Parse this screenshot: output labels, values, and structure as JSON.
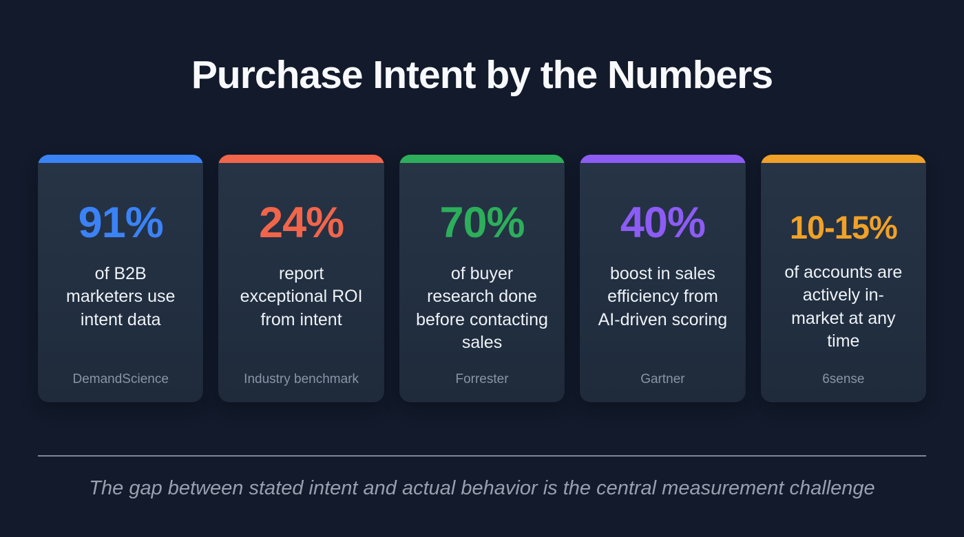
{
  "page": {
    "title": "Purchase Intent by the Numbers",
    "footer_note": "The gap between stated intent and actual behavior is the central measurement challenge"
  },
  "colors": {
    "background": "#121a2b",
    "card_background": "#233140",
    "title_text": "#f7f9fc",
    "body_text": "#eef2f7",
    "source_text": "#8a94a6",
    "divider": "#7e8899",
    "footer_text": "#98a0b0"
  },
  "chart_data": {
    "type": "table",
    "title": "Purchase Intent by the Numbers",
    "annotations": [
      "The gap between stated intent and actual behavior is the central measurement challenge"
    ],
    "series": [
      {
        "value": "91%",
        "numeric_value": 91,
        "label": "of B2B marketers use intent data",
        "source": "DemandScience",
        "accent_color": "#3b82f6"
      },
      {
        "value": "24%",
        "numeric_value": 24,
        "label": "report exceptional ROI from intent",
        "source": "Industry benchmark",
        "accent_color": "#f2654b"
      },
      {
        "value": "70%",
        "numeric_value": 70,
        "label": "of buyer research done before contacting sales",
        "source": "Forrester",
        "accent_color": "#2dae5b"
      },
      {
        "value": "40%",
        "numeric_value": 40,
        "label": "boost in sales efficiency from AI-driven scoring",
        "source": "Gartner",
        "accent_color": "#8c5cf5"
      },
      {
        "value": "10-15%",
        "numeric_range": [
          10,
          15
        ],
        "label": "of accounts are actively in-market at any time",
        "source": "6sense",
        "accent_color": "#f0a127"
      }
    ]
  },
  "cards": [
    {
      "value": "91%",
      "accent": "#3b82f6",
      "description": "of B2B marketers use intent data",
      "source": "DemandScience"
    },
    {
      "value": "24%",
      "accent": "#f2654b",
      "description": "report exceptional ROI from intent",
      "source": "Industry benchmark"
    },
    {
      "value": "70%",
      "accent": "#2dae5b",
      "description": "of buyer research done before contacting sales",
      "source": "Forrester"
    },
    {
      "value": "40%",
      "accent": "#8c5cf5",
      "description": "boost in sales efficiency from AI-driven scoring",
      "source": "Gartner"
    },
    {
      "value": "10-15%",
      "accent": "#f0a127",
      "description": "of accounts are actively in-market at any time",
      "source": "6sense"
    }
  ]
}
